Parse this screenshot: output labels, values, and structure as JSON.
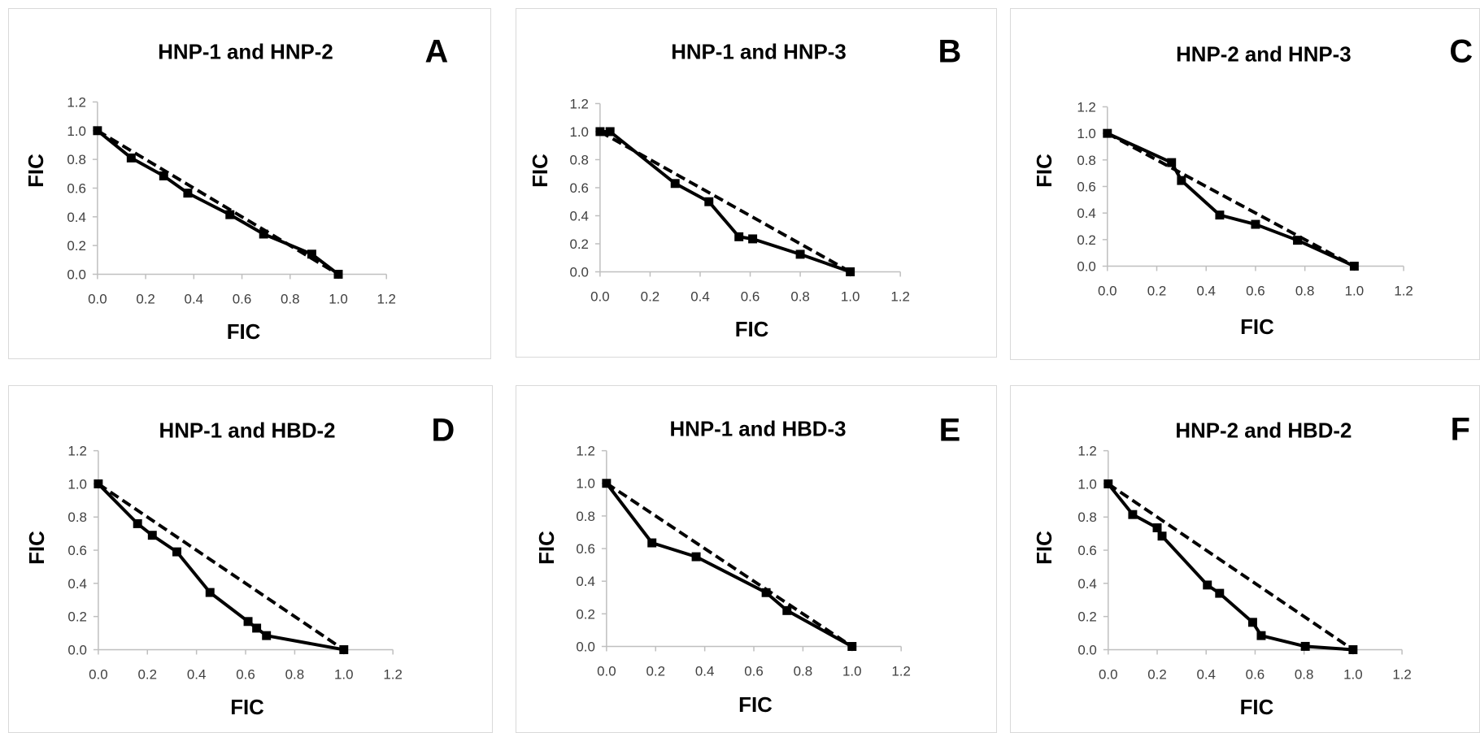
{
  "axis_ticks": [
    "0.0",
    "0.2",
    "0.4",
    "0.6",
    "0.8",
    "1.0",
    "1.2"
  ],
  "chart_data": [
    {
      "type": "line",
      "panel": "A",
      "title": "HNP-1 and HNP-2",
      "xlabel": "FIC",
      "ylabel": "FIC",
      "xlim": [
        0,
        1.2
      ],
      "ylim": [
        0,
        1.2
      ],
      "grid": false,
      "series": [
        {
          "style": "solid-square-markers",
          "x": [
            0.0,
            0.14,
            0.275,
            0.375,
            0.55,
            0.69,
            0.89,
            1.0
          ],
          "y": [
            1.0,
            0.81,
            0.685,
            0.565,
            0.415,
            0.28,
            0.14,
            0.0
          ]
        },
        {
          "style": "dashed",
          "x": [
            0.0,
            1.0
          ],
          "y": [
            1.0,
            0.0
          ]
        }
      ]
    },
    {
      "type": "line",
      "panel": "B",
      "title": "HNP-1 and HNP-3",
      "xlabel": "FIC",
      "ylabel": "FIC",
      "xlim": [
        0,
        1.2
      ],
      "ylim": [
        0,
        1.2
      ],
      "grid": false,
      "series": [
        {
          "style": "solid-square-markers",
          "x": [
            0.0,
            0.04,
            0.3,
            0.435,
            0.555,
            0.61,
            0.8,
            1.0
          ],
          "y": [
            1.0,
            1.0,
            0.63,
            0.5,
            0.25,
            0.235,
            0.125,
            0.0
          ]
        },
        {
          "style": "dashed",
          "x": [
            0.0,
            1.0
          ],
          "y": [
            1.0,
            0.0
          ]
        }
      ]
    },
    {
      "type": "line",
      "panel": "C",
      "title": "HNP-2 and HNP-3",
      "xlabel": "FIC",
      "ylabel": "FIC",
      "xlim": [
        0,
        1.2
      ],
      "ylim": [
        0,
        1.2
      ],
      "grid": false,
      "series": [
        {
          "style": "solid-square-markers",
          "x": [
            0.0,
            0.26,
            0.3,
            0.455,
            0.6,
            0.77,
            1.0
          ],
          "y": [
            1.0,
            0.78,
            0.645,
            0.385,
            0.315,
            0.195,
            0.0
          ]
        },
        {
          "style": "dashed",
          "x": [
            0.0,
            1.0
          ],
          "y": [
            1.0,
            0.0
          ]
        }
      ]
    },
    {
      "type": "line",
      "panel": "D",
      "title": "HNP-1 and HBD-2",
      "xlabel": "FIC",
      "ylabel": "FIC",
      "xlim": [
        0,
        1.2
      ],
      "ylim": [
        0,
        1.2
      ],
      "grid": false,
      "series": [
        {
          "style": "solid-square-markers",
          "x": [
            0.0,
            0.16,
            0.22,
            0.32,
            0.455,
            0.61,
            0.645,
            0.685,
            1.0
          ],
          "y": [
            1.0,
            0.76,
            0.69,
            0.59,
            0.345,
            0.17,
            0.13,
            0.085,
            0.0
          ]
        },
        {
          "style": "dashed",
          "x": [
            0.0,
            1.0
          ],
          "y": [
            1.0,
            0.0
          ]
        }
      ]
    },
    {
      "type": "line",
      "panel": "E",
      "title": "HNP-1 and HBD-3",
      "xlabel": "FIC",
      "ylabel": "FIC",
      "xlim": [
        0,
        1.2
      ],
      "ylim": [
        0,
        1.2
      ],
      "grid": false,
      "series": [
        {
          "style": "solid-square-markers",
          "x": [
            0.0,
            0.185,
            0.365,
            0.65,
            0.735,
            1.0
          ],
          "y": [
            1.0,
            0.635,
            0.55,
            0.33,
            0.22,
            0.0
          ]
        },
        {
          "style": "dashed",
          "x": [
            0.0,
            1.0
          ],
          "y": [
            1.0,
            0.0
          ]
        }
      ]
    },
    {
      "type": "line",
      "panel": "F",
      "title": "HNP-2 and HBD-2",
      "xlabel": "FIC",
      "ylabel": "FIC",
      "xlim": [
        0,
        1.2
      ],
      "ylim": [
        0,
        1.2
      ],
      "grid": false,
      "series": [
        {
          "style": "solid-square-markers",
          "x": [
            0.0,
            0.1,
            0.2,
            0.22,
            0.405,
            0.455,
            0.59,
            0.625,
            0.805,
            1.0
          ],
          "y": [
            1.0,
            0.815,
            0.735,
            0.685,
            0.39,
            0.34,
            0.165,
            0.085,
            0.02,
            0.0
          ]
        },
        {
          "style": "dashed",
          "x": [
            0.0,
            1.0
          ],
          "y": [
            1.0,
            0.0
          ]
        }
      ]
    }
  ]
}
